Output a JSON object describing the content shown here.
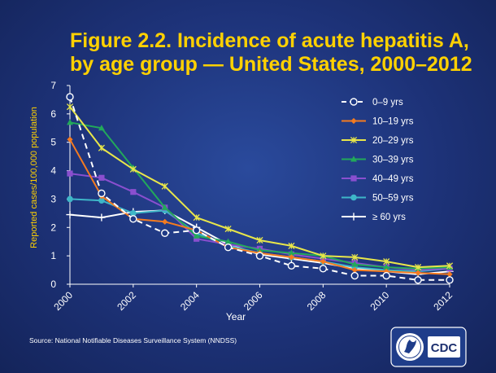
{
  "title_line1": "Figure 2.2. Incidence of acute hepatitis A,",
  "title_line2": "by age group — United States, 2000–2012",
  "source": "Source: National  Notifiable Diseases Surveillance System (NNDSS)",
  "logo": {
    "text": "CDC",
    "icon": "hhs-eagle-icon"
  },
  "chart_data": {
    "type": "line",
    "xlabel": "Year",
    "ylabel": "Reported cases/100,000 population",
    "xlim": [
      2000,
      2012
    ],
    "ylim": [
      0,
      7
    ],
    "x_ticks": [
      "2000",
      "2002",
      "2004",
      "2006",
      "2008",
      "2010",
      "2012"
    ],
    "y_ticks": [
      "0",
      "1",
      "2",
      "3",
      "4",
      "5",
      "6",
      "7"
    ],
    "grid": false,
    "legend_position": "right",
    "x": [
      2000,
      2001,
      2002,
      2003,
      2004,
      2005,
      2006,
      2007,
      2008,
      2009,
      2010,
      2011,
      2012
    ],
    "series": [
      {
        "name": "0–9 yrs",
        "color": "#ffffff",
        "marker": "open-circle",
        "dash": true,
        "values": [
          6.6,
          3.2,
          2.3,
          1.8,
          1.9,
          1.3,
          1.0,
          0.65,
          0.55,
          0.3,
          0.3,
          0.15,
          0.15
        ]
      },
      {
        "name": "10–19 yrs",
        "color": "#f47b20",
        "marker": "diamond",
        "dash": false,
        "values": [
          5.1,
          3.1,
          2.3,
          2.2,
          1.9,
          1.3,
          1.1,
          0.95,
          0.8,
          0.5,
          0.45,
          0.4,
          0.35
        ]
      },
      {
        "name": "20–29 yrs",
        "color": "#e8e64a",
        "marker": "asterisk",
        "dash": false,
        "values": [
          6.25,
          4.8,
          4.05,
          3.45,
          2.35,
          1.95,
          1.55,
          1.35,
          1.0,
          0.95,
          0.8,
          0.6,
          0.65
        ]
      },
      {
        "name": "30–39 yrs",
        "color": "#22a95a",
        "marker": "triangle",
        "dash": false,
        "values": [
          5.7,
          5.5,
          4.1,
          2.7,
          1.7,
          1.5,
          1.2,
          1.1,
          1.0,
          0.7,
          0.6,
          0.55,
          0.6
        ]
      },
      {
        "name": "40–49 yrs",
        "color": "#8a4fcf",
        "marker": "square",
        "dash": false,
        "values": [
          3.9,
          3.75,
          3.25,
          2.7,
          1.6,
          1.4,
          1.25,
          1.05,
          0.9,
          0.75,
          0.6,
          0.5,
          0.55
        ]
      },
      {
        "name": "50–59 yrs",
        "color": "#3eb6c8",
        "marker": "circle",
        "dash": false,
        "values": [
          3.0,
          2.95,
          2.5,
          2.6,
          1.8,
          1.35,
          1.1,
          0.95,
          0.8,
          0.6,
          0.5,
          0.45,
          0.55
        ]
      },
      {
        "name": "≥ 60 yrs",
        "color": "#ffffff",
        "marker": "plus",
        "dash": false,
        "values": [
          2.45,
          2.35,
          2.55,
          2.6,
          2.0,
          1.4,
          1.05,
          0.9,
          0.75,
          0.55,
          0.45,
          0.35,
          0.45
        ]
      }
    ]
  }
}
